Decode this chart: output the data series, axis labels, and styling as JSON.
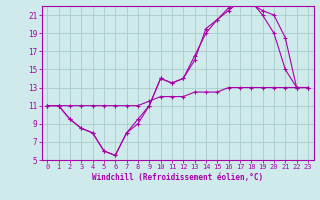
{
  "xlabel": "Windchill (Refroidissement éolien,°C)",
  "xlim": [
    -0.5,
    23.5
  ],
  "ylim": [
    5,
    22
  ],
  "xticks": [
    0,
    1,
    2,
    3,
    4,
    5,
    6,
    7,
    8,
    9,
    10,
    11,
    12,
    13,
    14,
    15,
    16,
    17,
    18,
    19,
    20,
    21,
    22,
    23
  ],
  "yticks": [
    5,
    7,
    9,
    11,
    13,
    15,
    17,
    19,
    21
  ],
  "background_color": "#ceeaea",
  "line_color": "#aa00aa",
  "grid_color": "#aacccc",
  "lines": [
    {
      "x": [
        0,
        1,
        2,
        3,
        4,
        5,
        6,
        7,
        8,
        9,
        10,
        11,
        12,
        13,
        14,
        15,
        16,
        17,
        18,
        19,
        20,
        21,
        22,
        23
      ],
      "y": [
        11,
        11,
        9.5,
        8.5,
        8,
        6,
        5.5,
        8,
        9.5,
        11,
        14,
        13.5,
        14,
        16.5,
        19,
        20.5,
        21.8,
        22.2,
        22.2,
        21.5,
        21,
        18.5,
        13,
        13
      ]
    },
    {
      "x": [
        0,
        1,
        2,
        3,
        4,
        5,
        6,
        7,
        8,
        9,
        10,
        11,
        12,
        13,
        14,
        15,
        16,
        17,
        18,
        19,
        20,
        21,
        22,
        23
      ],
      "y": [
        11,
        11,
        9.5,
        8.5,
        8,
        6,
        5.5,
        8,
        9,
        11,
        14,
        13.5,
        14,
        16,
        19.5,
        20.5,
        21.5,
        22.5,
        22.5,
        21,
        19,
        15,
        13,
        13
      ]
    },
    {
      "x": [
        0,
        1,
        2,
        3,
        4,
        5,
        6,
        7,
        8,
        9,
        10,
        11,
        12,
        13,
        14,
        15,
        16,
        17,
        18,
        19,
        20,
        21,
        22,
        23
      ],
      "y": [
        11,
        11,
        11,
        11,
        11,
        11,
        11,
        11,
        11,
        11.5,
        12,
        12,
        12,
        12.5,
        12.5,
        12.5,
        13,
        13,
        13,
        13,
        13,
        13,
        13,
        13
      ]
    }
  ]
}
